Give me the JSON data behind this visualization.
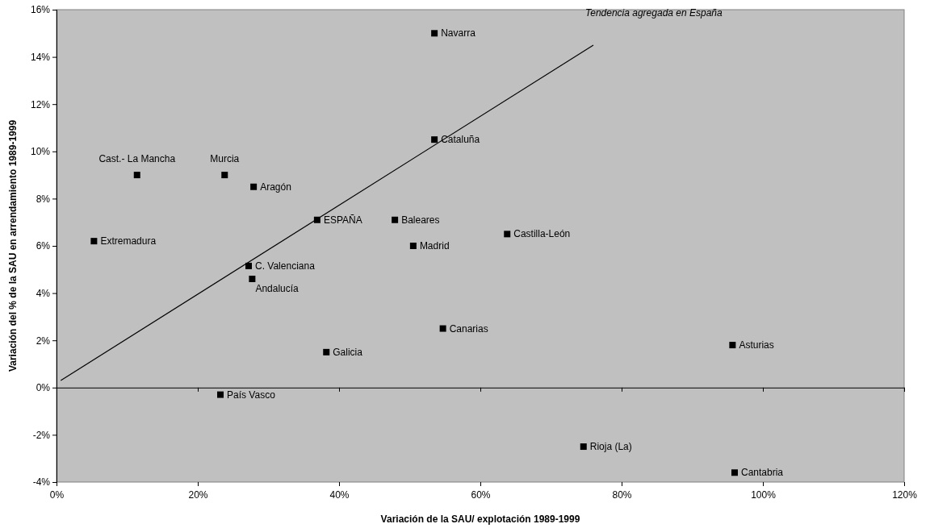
{
  "chart_data": {
    "type": "scatter",
    "xlabel": "Variación de la SAU/ explotación 1989-1999",
    "ylabel": "Variación del % de la SAU en arrendamiento 1989-1999",
    "xlim": [
      0,
      120
    ],
    "xticks": [
      {
        "value": 0,
        "label": "0%"
      },
      {
        "value": 20,
        "label": "20%"
      },
      {
        "value": 40,
        "label": "40%"
      },
      {
        "value": 60,
        "label": "60%"
      },
      {
        "value": 80,
        "label": "80%"
      },
      {
        "value": 100,
        "label": "100%"
      },
      {
        "value": 120,
        "label": "120%"
      }
    ],
    "ylim": [
      -4,
      16
    ],
    "yticks": [
      {
        "value": -4,
        "label": "-4%"
      },
      {
        "value": -2,
        "label": "-2%"
      },
      {
        "value": 0,
        "label": "0%"
      },
      {
        "value": 2,
        "label": "2%"
      },
      {
        "value": 4,
        "label": "4%"
      },
      {
        "value": 6,
        "label": "6%"
      },
      {
        "value": 8,
        "label": "8%"
      },
      {
        "value": 10,
        "label": "10%"
      },
      {
        "value": 12,
        "label": "12%"
      },
      {
        "value": 14,
        "label": "14%"
      },
      {
        "value": 16,
        "label": "16%"
      }
    ],
    "grid": false,
    "series": [
      {
        "marker": "square",
        "color": "#000000",
        "x": [
          53.5,
          53.5,
          11.4,
          23.8,
          27.9,
          36.9,
          47.9,
          5.3,
          63.8,
          50.5,
          27.2,
          27.7,
          54.7,
          38.2,
          95.7,
          23.2,
          74.6,
          96.0
        ],
        "values": [
          15.0,
          10.5,
          9.0,
          9.0,
          8.5,
          7.1,
          7.1,
          6.2,
          6.5,
          6.0,
          5.15,
          4.6,
          2.5,
          1.5,
          1.8,
          -0.3,
          -2.5,
          -3.6
        ]
      },
      {
        "type": "line",
        "name": "Tendencia agregada en España",
        "color": "#000000",
        "line_style": "solid",
        "marker": "none",
        "x": [
          0.6,
          76.0
        ],
        "values": [
          0.3,
          14.5
        ]
      }
    ],
    "annotations": [
      {
        "text": "Navarra",
        "x": 53.5,
        "y": 15.0
      },
      {
        "text": "Cataluña",
        "x": 53.5,
        "y": 10.5
      },
      {
        "text": "Cast.- La Mancha",
        "x": 11.4,
        "y": 9.0
      },
      {
        "text": "Murcia",
        "x": 23.8,
        "y": 9.0
      },
      {
        "text": "Aragón",
        "x": 27.9,
        "y": 8.5
      },
      {
        "text": "ESPAÑA",
        "x": 36.9,
        "y": 7.1
      },
      {
        "text": "Baleares",
        "x": 47.9,
        "y": 7.1
      },
      {
        "text": "Extremadura",
        "x": 5.3,
        "y": 6.2
      },
      {
        "text": "Castilla-León",
        "x": 63.8,
        "y": 6.5
      },
      {
        "text": "Madrid",
        "x": 50.5,
        "y": 6.0
      },
      {
        "text": "C. Valenciana",
        "x": 27.2,
        "y": 5.15
      },
      {
        "text": "Andalucía",
        "x": 27.7,
        "y": 4.6
      },
      {
        "text": "Canarias",
        "x": 54.7,
        "y": 2.5
      },
      {
        "text": "Galicia",
        "x": 38.2,
        "y": 1.5
      },
      {
        "text": "Asturias",
        "x": 95.7,
        "y": 1.8
      },
      {
        "text": "País Vasco",
        "x": 23.2,
        "y": -0.3
      },
      {
        "text": "Rioja (La)",
        "x": 74.6,
        "y": -2.5
      },
      {
        "text": "Cantabria",
        "x": 96.0,
        "y": -3.6
      }
    ]
  }
}
